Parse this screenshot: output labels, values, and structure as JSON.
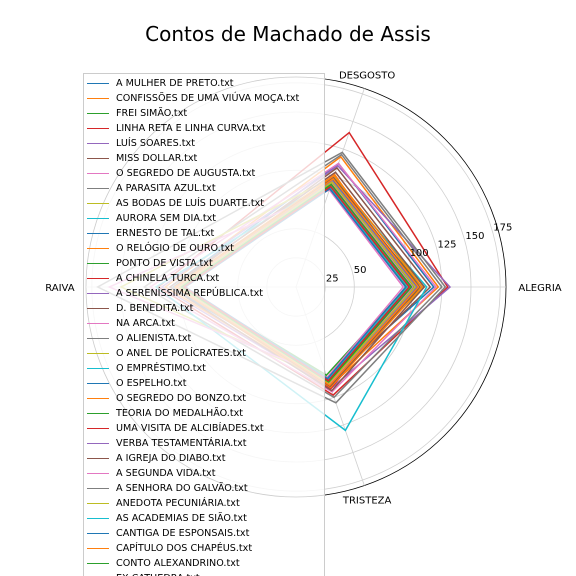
{
  "chart_data": {
    "type": "radar",
    "title": "Contos de Machado de Assis",
    "axes": [
      "ALEGRIA",
      "DESGOSTO",
      "RAIVA",
      "TRISTEZA"
    ],
    "radial_ticks": [
      25,
      50,
      100,
      125,
      150,
      175
    ],
    "rmax": 180,
    "grid": true,
    "legend_position": "upper-left",
    "series": [
      {
        "name": "A MULHER DE PRETO.txt",
        "values": [
          118,
          112,
          108,
          85
        ]
      },
      {
        "name": "CONFISSÕES DE UMA VIÚVA MOÇA.txt",
        "values": [
          122,
          118,
          112,
          90
        ]
      },
      {
        "name": "FREI SIMÃO.txt",
        "values": [
          108,
          95,
          98,
          82
        ]
      },
      {
        "name": "LINHA RETA E LINHA CURVA.txt",
        "values": [
          130,
          140,
          118,
          98
        ]
      },
      {
        "name": "LUÍS SOARES.txt",
        "values": [
          132,
          110,
          115,
          92
        ]
      },
      {
        "name": "MISS DOLLAR.txt",
        "values": [
          115,
          108,
          105,
          88
        ]
      },
      {
        "name": "O SEGREDO DE AUGUSTA.txt",
        "values": [
          120,
          112,
          125,
          95
        ]
      },
      {
        "name": "A PARASITA AZUL.txt",
        "values": [
          125,
          120,
          130,
          100
        ]
      },
      {
        "name": "AS BODAS DE LUÍS DUARTE.txt",
        "values": [
          110,
          100,
          150,
          85
        ]
      },
      {
        "name": "AURORA SEM DIA.txt",
        "values": [
          112,
          98,
          120,
          130
        ]
      },
      {
        "name": "ERNESTO DE TAL.txt",
        "values": [
          105,
          95,
          105,
          88
        ]
      },
      {
        "name": "O RELÓGIO DE OURO.txt",
        "values": [
          100,
          102,
          100,
          90
        ]
      },
      {
        "name": "PONTO DE VISTA.txt",
        "values": [
          95,
          90,
          98,
          80
        ]
      },
      {
        "name": "A CHINELA TURCA.txt",
        "values": [
          102,
          96,
          100,
          92
        ]
      },
      {
        "name": "A SERENÍSSIMA REPÚBLICA.txt",
        "values": [
          98,
          92,
          96,
          86
        ]
      },
      {
        "name": "D. BENEDITA.txt",
        "values": [
          110,
          104,
          108,
          94
        ]
      },
      {
        "name": "NA ARCA.txt",
        "values": [
          92,
          88,
          160,
          82
        ]
      },
      {
        "name": "O ALIENISTA.txt",
        "values": [
          128,
          122,
          170,
          105
        ]
      },
      {
        "name": "O ANEL DE POLÍCRATES.txt",
        "values": [
          96,
          90,
          100,
          84
        ]
      },
      {
        "name": "O EMPRÉSTIMO.txt",
        "values": [
          99,
          94,
          98,
          87
        ]
      },
      {
        "name": "O ESPELHO.txt",
        "values": [
          104,
          97,
          102,
          89
        ]
      },
      {
        "name": "O SEGREDO DO BONZO.txt",
        "values": [
          108,
          101,
          104,
          91
        ]
      },
      {
        "name": "TEORIA DO MEDALHÃO.txt",
        "values": [
          101,
          93,
          99,
          86
        ]
      },
      {
        "name": "UMA VISITA DE ALCIBÍADES.txt",
        "values": [
          97,
          91,
          97,
          85
        ]
      },
      {
        "name": "VERBA TESTAMENTÁRIA.txt",
        "values": [
          103,
          96,
          101,
          88
        ]
      },
      {
        "name": "A IGREJA DO DIABO.txt",
        "values": [
          106,
          99,
          103,
          90
        ]
      },
      {
        "name": "A SEGUNDA VIDA.txt",
        "values": [
          100,
          94,
          102,
          88
        ]
      },
      {
        "name": "A SENHORA DO GALVÃO.txt",
        "values": [
          98,
          92,
          99,
          86
        ]
      },
      {
        "name": "ANEDOTA PECUNIÁRIA.txt",
        "values": [
          102,
          95,
          100,
          87
        ]
      },
      {
        "name": "AS ACADEMIAS DE SIÃO.txt",
        "values": [
          96,
          90,
          97,
          84
        ]
      },
      {
        "name": "CANTIGA DE ESPONSAIS.txt",
        "values": [
          94,
          89,
          95,
          83
        ]
      },
      {
        "name": "CAPÍTULO DOS CHAPÉUS.txt",
        "values": [
          105,
          98,
          103,
          89
        ]
      },
      {
        "name": "CONTO ALEXANDRINO.txt",
        "values": [
          99,
          93,
          98,
          86
        ]
      },
      {
        "name": "EX CATHEDRA.txt",
        "values": [
          97,
          91,
          96,
          85
        ]
      }
    ]
  },
  "colors": [
    "#1f77b4",
    "#ff7f0e",
    "#2ca02c",
    "#d62728",
    "#9467bd",
    "#8c564b",
    "#e377c2",
    "#7f7f7f",
    "#bcbd22",
    "#17becf"
  ]
}
